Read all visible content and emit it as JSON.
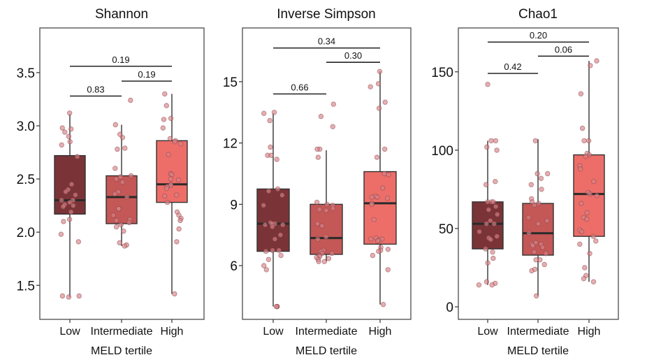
{
  "chart_data": [
    {
      "type": "box",
      "title": "Shannon",
      "xlabel": "MELD tertile",
      "ylabel": "",
      "categories": [
        "Low",
        "Intermediate",
        "High"
      ],
      "ylim": [
        1.18,
        3.92
      ],
      "yticks": [
        1.5,
        2.0,
        2.5,
        3.0,
        3.5
      ],
      "ytick_labels": [
        "1.5",
        "2.0",
        "2.5",
        "3.0",
        "3.5"
      ],
      "colors": [
        "#7a3437",
        "#c45856",
        "#ed6e69"
      ],
      "boxes": [
        {
          "category": "Low",
          "whisker_low": 1.39,
          "q1": 2.17,
          "median": 2.3,
          "q3": 2.72,
          "whisker_high": 3.11
        },
        {
          "category": "Intermediate",
          "whisker_low": 1.87,
          "q1": 2.08,
          "median": 2.33,
          "q3": 2.53,
          "whisker_high": 3.01
        },
        {
          "category": "High",
          "whisker_low": 1.42,
          "q1": 2.28,
          "median": 2.45,
          "q3": 2.86,
          "whisker_high": 3.3
        }
      ],
      "points": [
        [
          3.12,
          2.97,
          2.98,
          2.94,
          2.9,
          2.85,
          2.82,
          2.71,
          2.45,
          2.4,
          2.38,
          2.35,
          2.3,
          2.3,
          2.28,
          2.26,
          2.25,
          2.24,
          2.19,
          2.12,
          2.1,
          1.98,
          1.91,
          1.4,
          1.4,
          1.39
        ],
        [
          3.24,
          3.01,
          2.92,
          2.89,
          2.79,
          2.78,
          2.6,
          2.53,
          2.52,
          2.5,
          2.47,
          2.38,
          2.36,
          2.33,
          2.22,
          2.22,
          2.16,
          2.12,
          2.11,
          2.09,
          2.07,
          2.05,
          2.01,
          1.9,
          1.88,
          1.87
        ],
        [
          3.3,
          3.19,
          3.07,
          3.06,
          2.98,
          2.88,
          2.86,
          2.85,
          2.83,
          2.73,
          2.55,
          2.54,
          2.5,
          2.49,
          2.45,
          2.44,
          2.43,
          2.41,
          2.35,
          2.34,
          2.28,
          2.19,
          2.16,
          2.13,
          2.11,
          2.03,
          1.91,
          1.42
        ]
      ],
      "comparisons": [
        {
          "groups": [
            "Low",
            "Intermediate"
          ],
          "p": "0.83",
          "y": 3.28
        },
        {
          "groups": [
            "Intermediate",
            "High"
          ],
          "p": "0.19",
          "y": 3.42
        },
        {
          "groups": [
            "Low",
            "High"
          ],
          "p": "0.19",
          "y": 3.56
        }
      ]
    },
    {
      "type": "box",
      "title": "Inverse Simpson",
      "xlabel": "MELD tertile",
      "ylabel": "",
      "categories": [
        "Low",
        "Intermediate",
        "High"
      ],
      "ylim": [
        3.37,
        17.63
      ],
      "yticks": [
        6,
        9,
        12,
        15
      ],
      "ytick_labels": [
        "6",
        "9",
        "12",
        "15"
      ],
      "colors": [
        "#7a3437",
        "#c45856",
        "#ed6e69"
      ],
      "boxes": [
        {
          "category": "Low",
          "whisker_low": 4.0,
          "q1": 6.7,
          "median": 8.05,
          "q3": 9.75,
          "whisker_high": 13.45
        },
        {
          "category": "Intermediate",
          "whisker_low": 6.2,
          "q1": 6.55,
          "median": 7.35,
          "q3": 9.0,
          "whisker_high": 11.65
        },
        {
          "category": "High",
          "whisker_low": 4.1,
          "q1": 7.05,
          "median": 9.05,
          "q3": 10.6,
          "whisker_high": 15.5
        }
      ],
      "points": [
        [
          13.5,
          13.45,
          13.1,
          11.8,
          11.4,
          11.4,
          11.2,
          9.75,
          9.65,
          9.45,
          8.95,
          8.1,
          8.05,
          8.05,
          8.0,
          8.0,
          7.9,
          7.5,
          7.3,
          6.75,
          6.7,
          6.75,
          6.5,
          6.3,
          6.0,
          5.8,
          4.0,
          4.0,
          4.0
        ],
        [
          13.9,
          13.3,
          12.8,
          11.7,
          11.7,
          11.3,
          9.1,
          9.0,
          8.95,
          8.8,
          8.75,
          8.7,
          8.05,
          7.95,
          7.4,
          7.3,
          6.75,
          6.7,
          6.6,
          6.6,
          6.5,
          6.45,
          6.4,
          6.35,
          6.3,
          6.2,
          6.2
        ],
        [
          15.5,
          14.9,
          14.75,
          14.0,
          13.7,
          11.7,
          11.3,
          10.45,
          10.5,
          9.8,
          9.4,
          9.35,
          9.35,
          9.3,
          9.05,
          9.0,
          8.25,
          7.35,
          7.3,
          7.3,
          7.25,
          7.2,
          6.9,
          6.8,
          6.75,
          6.7,
          6.5,
          5.8,
          4.1
        ]
      ],
      "comparisons": [
        {
          "groups": [
            "Low",
            "Intermediate"
          ],
          "p": "0.66",
          "y": 14.4
        },
        {
          "groups": [
            "Intermediate",
            "High"
          ],
          "p": "0.30",
          "y": 15.95
        },
        {
          "groups": [
            "Low",
            "High"
          ],
          "p": "0.34",
          "y": 16.65
        }
      ]
    },
    {
      "type": "box",
      "title": "Chao1",
      "xlabel": "MELD tertile",
      "ylabel": "",
      "categories": [
        "Low",
        "Intermediate",
        "High"
      ],
      "ylim": [
        -8,
        178
      ],
      "yticks": [
        0,
        50,
        100,
        150
      ],
      "ytick_labels": [
        "0",
        "50",
        "100",
        "150"
      ],
      "colors": [
        "#7a3437",
        "#c45856",
        "#ed6e69"
      ],
      "boxes": [
        {
          "category": "Low",
          "whisker_low": 14,
          "q1": 37,
          "median": 53,
          "q3": 67,
          "whisker_high": 106
        },
        {
          "category": "Intermediate",
          "whisker_low": 7,
          "q1": 33,
          "median": 47,
          "q3": 66,
          "whisker_high": 107
        },
        {
          "category": "High",
          "whisker_low": 16,
          "q1": 45,
          "median": 72,
          "q3": 97,
          "whisker_high": 157
        }
      ],
      "points": [
        [
          142,
          106,
          106,
          102,
          100,
          80,
          78,
          67,
          67,
          67,
          64,
          62,
          59,
          55,
          53,
          53,
          48,
          45,
          44,
          43,
          37,
          35,
          31,
          28,
          16,
          15,
          14,
          14
        ],
        [
          106,
          85,
          85,
          82,
          78,
          75,
          69,
          67,
          66,
          65,
          57,
          55,
          53,
          47,
          41,
          40,
          40,
          39,
          38,
          35,
          34,
          30,
          30,
          27,
          23,
          24,
          7
        ],
        [
          157,
          154,
          136,
          114,
          106,
          106,
          98,
          97,
          96,
          90,
          88,
          80,
          73,
          72,
          71,
          66,
          60,
          57,
          56,
          49,
          48,
          45,
          42,
          40,
          34,
          25,
          20,
          18,
          16
        ]
      ],
      "comparisons": [
        {
          "groups": [
            "Low",
            "Intermediate"
          ],
          "p": "0.42",
          "y": 149
        },
        {
          "groups": [
            "Intermediate",
            "High"
          ],
          "p": "0.06",
          "y": 160
        },
        {
          "groups": [
            "Low",
            "High"
          ],
          "p": "0.20",
          "y": 169
        }
      ]
    }
  ]
}
